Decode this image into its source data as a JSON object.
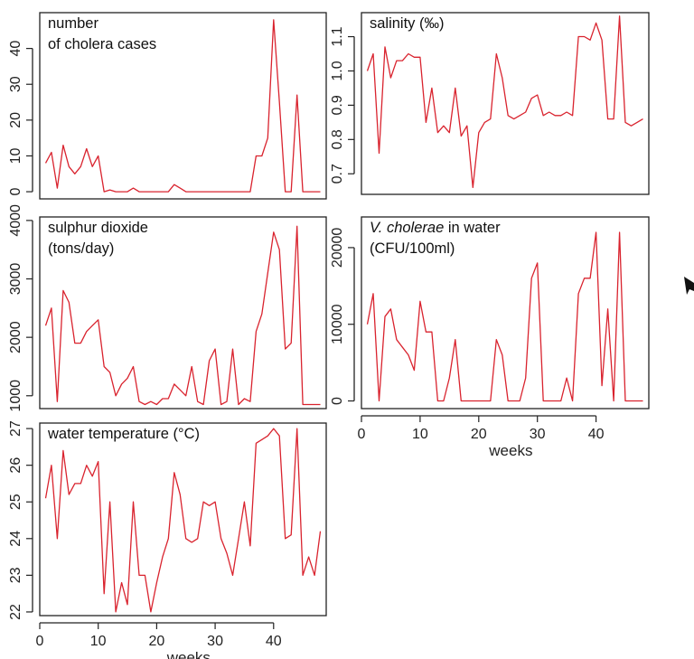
{
  "chart_data": [
    {
      "type": "line",
      "id": "cholera",
      "title": "number",
      "title_line2": "of cholera cases",
      "xlabel": "",
      "ylabel": "",
      "xlim": [
        0,
        49
      ],
      "ylim": [
        -2,
        50
      ],
      "yticks": [
        0,
        10,
        20,
        30,
        40
      ],
      "xticks": [],
      "series": [
        {
          "x": [
            1,
            2,
            3,
            4,
            5,
            6,
            7,
            8,
            9,
            10,
            11,
            12,
            13,
            14,
            15,
            16,
            17,
            18,
            19,
            20,
            21,
            22,
            23,
            24,
            25,
            26,
            27,
            28,
            29,
            30,
            31,
            32,
            33,
            34,
            35,
            36,
            37,
            38,
            39,
            40,
            41,
            42,
            43,
            44,
            45,
            46,
            47,
            48
          ],
          "y": [
            8,
            11,
            1,
            13,
            7,
            5,
            7,
            12,
            7,
            10,
            0,
            0.5,
            0,
            0,
            0,
            1,
            0,
            0,
            0,
            0,
            0,
            0,
            2,
            1,
            0,
            0,
            0,
            0,
            0,
            0,
            0,
            0,
            0,
            0,
            0,
            0,
            10,
            10,
            15,
            48,
            25,
            0,
            0,
            27,
            0,
            0,
            0,
            0
          ]
        }
      ]
    },
    {
      "type": "line",
      "id": "salinity",
      "title": "salinity (‰)",
      "xlabel": "",
      "ylabel": "",
      "xlim": [
        0,
        49
      ],
      "ylim": [
        0.64,
        1.17
      ],
      "yticks": [
        0.7,
        0.8,
        0.9,
        1.0,
        1.1
      ],
      "ytick_labels": [
        "0.7",
        "0.8",
        "0.9",
        "1.0",
        "1.1"
      ],
      "xticks": [],
      "series": [
        {
          "x": [
            1,
            2,
            3,
            4,
            5,
            6,
            7,
            8,
            9,
            10,
            11,
            12,
            13,
            14,
            15,
            16,
            17,
            18,
            19,
            20,
            21,
            22,
            23,
            24,
            25,
            26,
            27,
            28,
            29,
            30,
            31,
            32,
            33,
            34,
            35,
            36,
            37,
            38,
            39,
            40,
            41,
            42,
            43,
            44,
            45,
            46,
            47,
            48
          ],
          "y": [
            1.0,
            1.05,
            0.76,
            1.07,
            0.98,
            1.03,
            1.03,
            1.05,
            1.04,
            1.04,
            0.85,
            0.95,
            0.82,
            0.84,
            0.82,
            0.95,
            0.81,
            0.84,
            0.66,
            0.82,
            0.85,
            0.86,
            1.05,
            0.98,
            0.87,
            0.86,
            0.87,
            0.88,
            0.92,
            0.93,
            0.87,
            0.88,
            0.87,
            0.87,
            0.88,
            0.87,
            1.1,
            1.1,
            1.09,
            1.14,
            1.09,
            0.86,
            0.86,
            1.16,
            0.85,
            0.84,
            0.85,
            0.86
          ]
        }
      ]
    },
    {
      "type": "line",
      "id": "sulphur",
      "title": "sulphur dioxide",
      "title_line2": "(tons/day)",
      "xlabel": "",
      "ylabel": "",
      "xlim": [
        0,
        49
      ],
      "ylim": [
        780,
        4060
      ],
      "yticks": [
        1000,
        2000,
        3000,
        4000
      ],
      "xticks": [],
      "series": [
        {
          "x": [
            1,
            2,
            3,
            4,
            5,
            6,
            7,
            8,
            9,
            10,
            11,
            12,
            13,
            14,
            15,
            16,
            17,
            18,
            19,
            20,
            21,
            22,
            23,
            24,
            25,
            26,
            27,
            28,
            29,
            30,
            31,
            32,
            33,
            34,
            35,
            36,
            37,
            38,
            39,
            40,
            41,
            42,
            43,
            44,
            45,
            46,
            47,
            48
          ],
          "y": [
            2200,
            2500,
            900,
            2800,
            2600,
            1900,
            1900,
            2100,
            2200,
            2300,
            1500,
            1400,
            1000,
            1200,
            1300,
            1500,
            900,
            850,
            900,
            850,
            950,
            950,
            1200,
            1100,
            1000,
            1500,
            900,
            850,
            1600,
            1800,
            850,
            900,
            1800,
            850,
            950,
            900,
            2100,
            2400,
            3100,
            3800,
            3500,
            1800,
            1900,
            3900,
            850,
            850,
            850,
            850
          ]
        }
      ]
    },
    {
      "type": "line",
      "id": "vcholerae",
      "title_italic": "V. cholerae",
      "title_rest": " in water",
      "title_line2": "(CFU/100ml)",
      "xlabel": "weeks",
      "ylabel": "",
      "xlim": [
        0,
        49
      ],
      "ylim": [
        -1000,
        24000
      ],
      "yticks": [
        0,
        10000,
        20000
      ],
      "xticks": [
        0,
        10,
        20,
        30,
        40
      ],
      "series": [
        {
          "x": [
            1,
            2,
            3,
            4,
            5,
            6,
            7,
            8,
            9,
            10,
            11,
            12,
            13,
            14,
            15,
            16,
            17,
            18,
            19,
            20,
            21,
            22,
            23,
            24,
            25,
            26,
            27,
            28,
            29,
            30,
            31,
            32,
            33,
            34,
            35,
            36,
            37,
            38,
            39,
            40,
            41,
            42,
            43,
            44,
            45,
            46,
            47,
            48
          ],
          "y": [
            10000,
            14000,
            0,
            11000,
            12000,
            8000,
            7000,
            6000,
            4000,
            13000,
            9000,
            9000,
            0,
            0,
            3000,
            8000,
            0,
            0,
            0,
            0,
            0,
            0,
            8000,
            6000,
            0,
            0,
            0,
            3000,
            16000,
            18000,
            0,
            0,
            0,
            0,
            3000,
            0,
            14000,
            16000,
            16000,
            22000,
            2000,
            12000,
            0,
            22000,
            0,
            0,
            0,
            0
          ]
        }
      ]
    },
    {
      "type": "line",
      "id": "watertemp",
      "title": "water temperature (°C)",
      "xlabel": "weeks",
      "ylabel": "",
      "xlim": [
        0,
        49
      ],
      "ylim": [
        21.9,
        27.15
      ],
      "yticks": [
        22,
        23,
        24,
        25,
        26,
        27
      ],
      "xticks": [
        0,
        10,
        20,
        30,
        40
      ],
      "series": [
        {
          "x": [
            1,
            2,
            3,
            4,
            5,
            6,
            7,
            8,
            9,
            10,
            11,
            12,
            13,
            14,
            15,
            16,
            17,
            18,
            19,
            20,
            21,
            22,
            23,
            24,
            25,
            26,
            27,
            28,
            29,
            30,
            31,
            32,
            33,
            34,
            35,
            36,
            37,
            38,
            39,
            40,
            41,
            42,
            43,
            44,
            45,
            46,
            47,
            48
          ],
          "y": [
            25.1,
            26.0,
            24.0,
            26.4,
            25.2,
            25.5,
            25.5,
            26.0,
            25.7,
            26.1,
            22.5,
            25.0,
            22.0,
            22.8,
            22.2,
            25.0,
            23.0,
            23.0,
            22.0,
            22.8,
            23.5,
            24.0,
            25.8,
            25.2,
            24.0,
            23.9,
            24.0,
            25.0,
            24.9,
            25.0,
            24.0,
            23.6,
            23.0,
            24.0,
            25.0,
            23.8,
            26.6,
            26.7,
            26.8,
            27.0,
            26.8,
            24.0,
            24.1,
            27.0,
            23.0,
            23.5,
            23.0,
            24.2
          ]
        }
      ]
    }
  ]
}
